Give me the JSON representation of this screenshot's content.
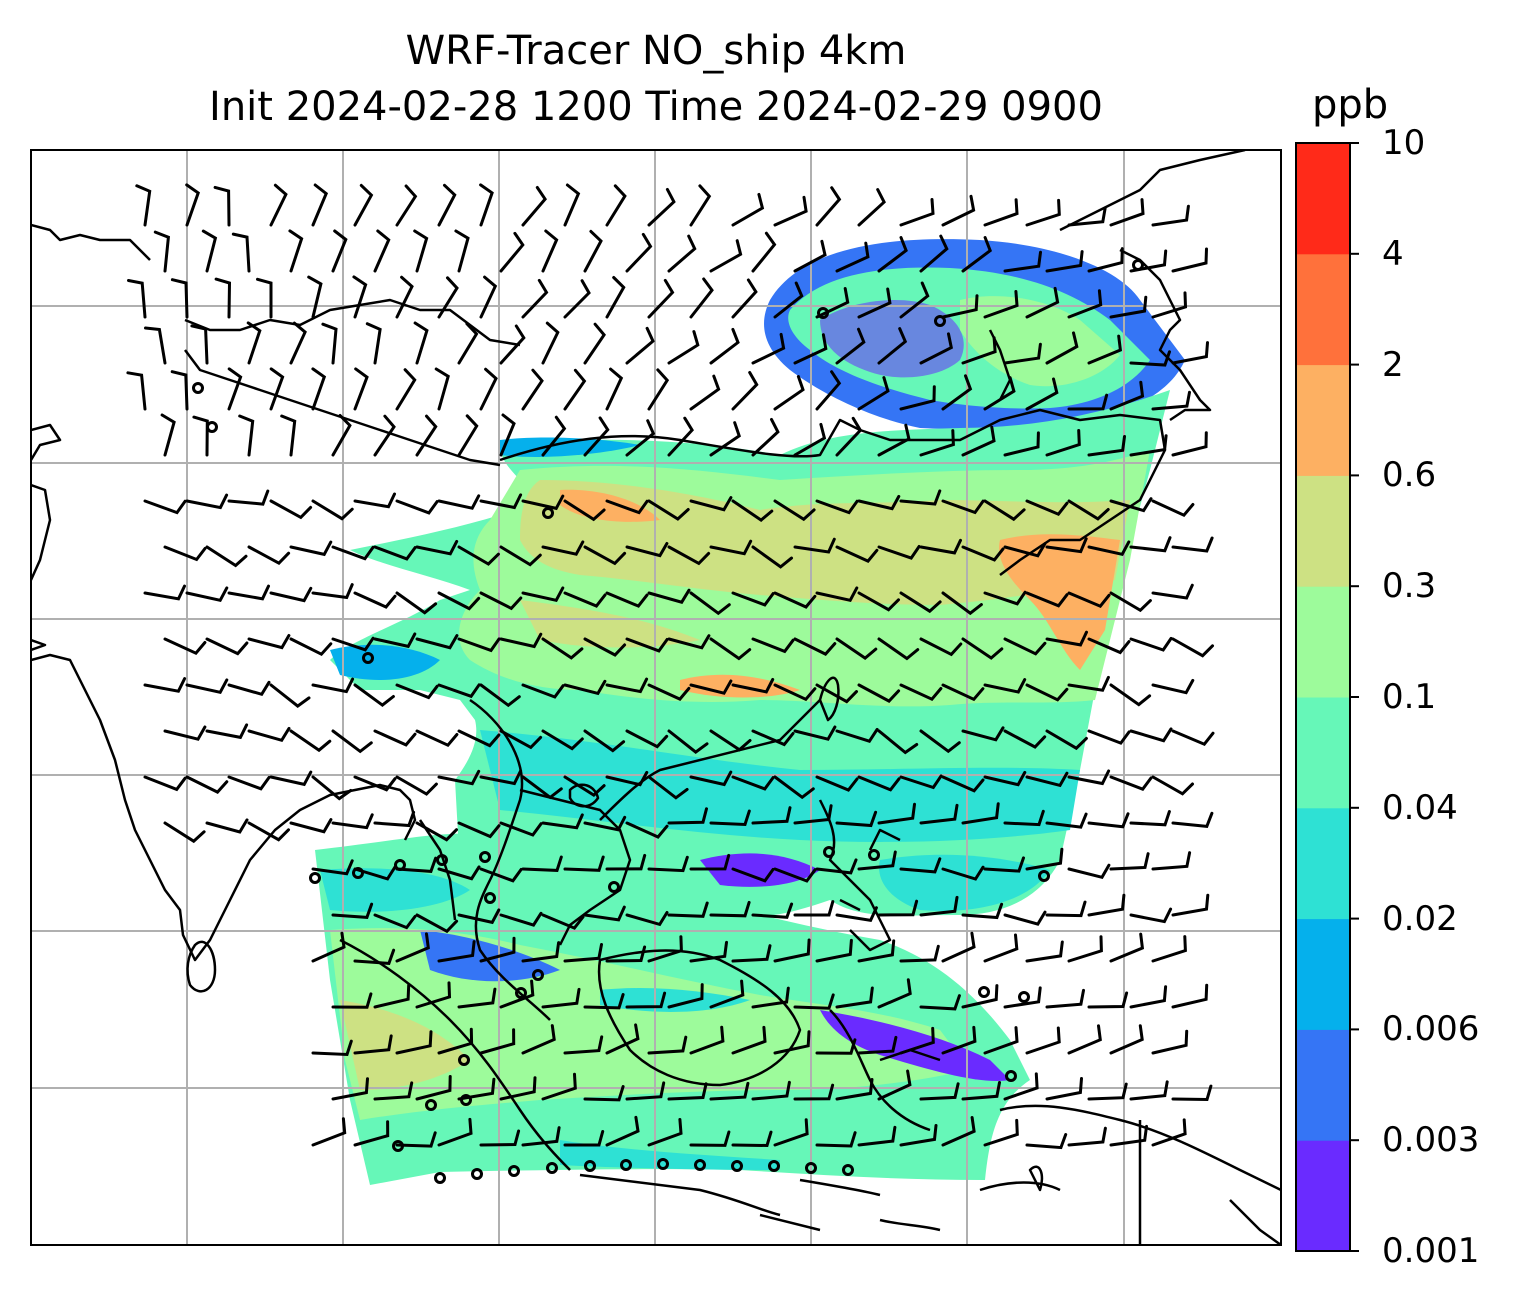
{
  "title": {
    "line1": "WRF-Tracer NO_ship 4km",
    "line2": "Init 2024-02-28 1200 Time 2024-02-29 0900"
  },
  "colorbar": {
    "unit": "ppb",
    "levels": [
      "0.001",
      "0.003",
      "0.006",
      "0.02",
      "0.04",
      "0.1",
      "0.3",
      "0.6",
      "2",
      "4",
      "10"
    ],
    "colors": [
      "#6a2bff",
      "#3575f5",
      "#05b0ec",
      "#2ee1d4",
      "#66f7b8",
      "#9dfb9b",
      "#cde183",
      "#fdb062",
      "#ff713b",
      "#ff2a19"
    ]
  },
  "map": {
    "variable": "NO_ship tracer concentration with wind barbs",
    "colors": {
      "coast": "#000000",
      "grid": "#b0b0b0",
      "frame": "#000000"
    }
  }
}
